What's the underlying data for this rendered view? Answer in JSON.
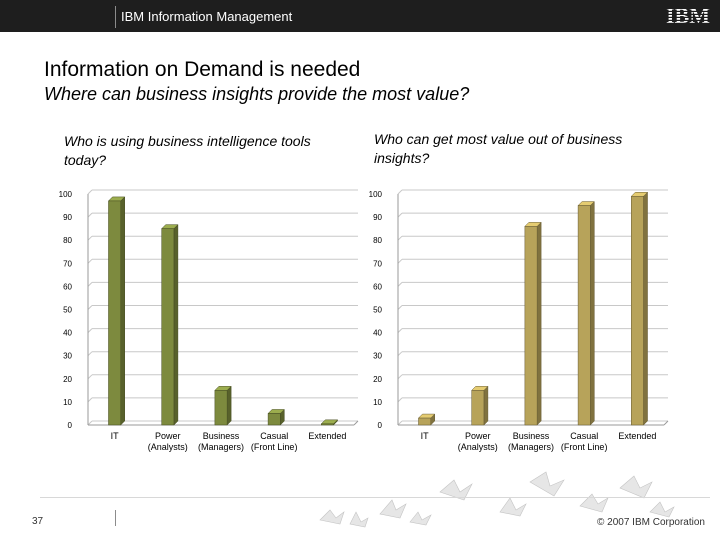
{
  "header": {
    "brand": "IBM Information Management",
    "logo_text": "IBM"
  },
  "slide": {
    "title": "Information on Demand is needed",
    "subtitle": "Where can business insights provide the most value?"
  },
  "footer": {
    "page_number": "37",
    "copyright": "© 2007 IBM Corporation"
  },
  "chart_data": [
    {
      "type": "bar",
      "title": "Who is using business intelligence tools today?",
      "categories": [
        "IT",
        "Power (Analysts)",
        "Business (Managers)",
        "Casual (Front Line)",
        "Extended"
      ],
      "category_lines": [
        [
          "IT"
        ],
        [
          "Power",
          "(Analysts)"
        ],
        [
          "Business",
          "(Managers)"
        ],
        [
          "Casual",
          "(Front Line)"
        ],
        [
          "Extended"
        ]
      ],
      "values": [
        97,
        85,
        15,
        5,
        0.5
      ],
      "ylim": [
        0,
        100
      ],
      "yticks": [
        0,
        10,
        20,
        30,
        40,
        50,
        60,
        70,
        80,
        90,
        100
      ],
      "color": "#7d8a3e",
      "grid": true,
      "style": "3d"
    },
    {
      "type": "bar",
      "title": "Who can get most value out of business insights?",
      "categories": [
        "IT",
        "Power (Analysts)",
        "Business (Managers)",
        "Casual (Front Line)",
        "Extended"
      ],
      "category_lines": [
        [
          "IT"
        ],
        [
          "Power",
          "(Analysts)"
        ],
        [
          "Business",
          "(Managers)"
        ],
        [
          "Casual",
          "(Front Line)"
        ],
        [
          "Extended"
        ]
      ],
      "values": [
        3,
        15,
        86,
        95,
        99
      ],
      "ylim": [
        0,
        100
      ],
      "yticks": [
        0,
        10,
        20,
        30,
        40,
        50,
        60,
        70,
        80,
        90,
        100
      ],
      "color": "#b7a35a",
      "grid": true,
      "style": "3d"
    }
  ]
}
